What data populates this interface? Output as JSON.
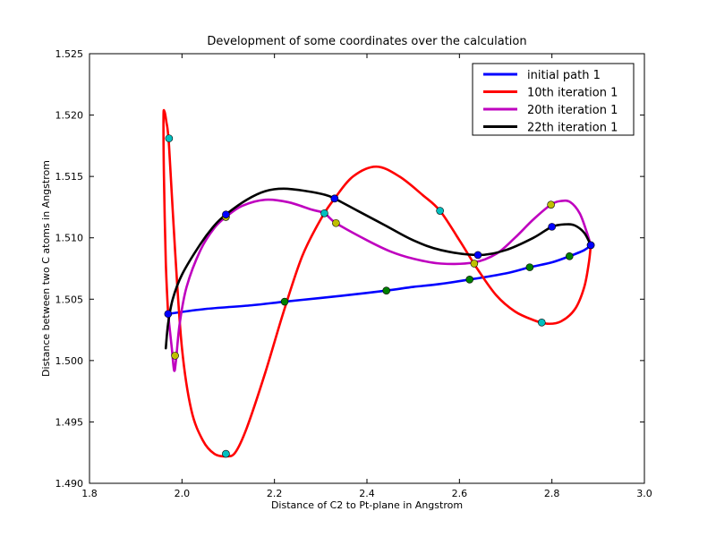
{
  "chart_data": {
    "type": "line",
    "title": "Development of some coordinates over the calculation",
    "xlabel": "Distance of C2 to Pt-plane in Angstrom",
    "ylabel": "Distance between two C atoms in Angstrom",
    "xlim": [
      1.8,
      3.0
    ],
    "ylim": [
      1.49,
      1.525
    ],
    "xticks": [
      1.8,
      2.0,
      2.2,
      2.4,
      2.6,
      2.8,
      3.0
    ],
    "xtick_labels": [
      "1.8",
      "2.0",
      "2.2",
      "2.4",
      "2.6",
      "2.8",
      "3.0"
    ],
    "yticks": [
      1.49,
      1.495,
      1.5,
      1.505,
      1.51,
      1.515,
      1.52,
      1.525
    ],
    "ytick_labels": [
      "1.490",
      "1.495",
      "1.500",
      "1.505",
      "1.510",
      "1.515",
      "1.520",
      "1.525"
    ],
    "legend_position": "top-right",
    "series": [
      {
        "name": "initial path 1",
        "color": "#0000ff",
        "curve": [
          [
            1.97,
            1.5038
          ],
          [
            2.05,
            1.5042
          ],
          [
            2.15,
            1.5045
          ],
          [
            2.222,
            1.5048
          ],
          [
            2.3,
            1.5051
          ],
          [
            2.35,
            1.5053
          ],
          [
            2.442,
            1.5057
          ],
          [
            2.5,
            1.506
          ],
          [
            2.55,
            1.5062
          ],
          [
            2.622,
            1.5066
          ],
          [
            2.7,
            1.5071
          ],
          [
            2.752,
            1.5076
          ],
          [
            2.8,
            1.508
          ],
          [
            2.838,
            1.5085
          ],
          [
            2.87,
            1.509
          ],
          [
            2.884,
            1.5094
          ]
        ],
        "markers": [
          [
            1.97,
            1.5038
          ],
          [
            2.222,
            1.5048
          ],
          [
            2.442,
            1.5057
          ],
          [
            2.622,
            1.5066
          ],
          [
            2.752,
            1.5076
          ],
          [
            2.838,
            1.5085
          ],
          [
            2.884,
            1.5094
          ]
        ],
        "marker_colors": [
          "#0000ff",
          "#008000",
          "#008000",
          "#008000",
          "#008000",
          "#008000",
          "#0000ff"
        ]
      },
      {
        "name": "10th iteration 1",
        "color": "#ff0000",
        "curve": [
          [
            1.97,
            1.5038
          ],
          [
            1.965,
            1.508
          ],
          [
            1.961,
            1.515
          ],
          [
            1.96,
            1.5198
          ],
          [
            1.962,
            1.5203
          ],
          [
            1.966,
            1.5195
          ],
          [
            1.972,
            1.5175
          ],
          [
            1.985,
            1.509
          ],
          [
            2.0,
            1.501
          ],
          [
            2.02,
            1.496
          ],
          [
            2.045,
            1.4935
          ],
          [
            2.07,
            1.4924
          ],
          [
            2.095,
            1.4922
          ],
          [
            2.115,
            1.4925
          ],
          [
            2.14,
            1.4945
          ],
          [
            2.18,
            1.499
          ],
          [
            2.22,
            1.504
          ],
          [
            2.26,
            1.5085
          ],
          [
            2.3,
            1.5115
          ],
          [
            2.33,
            1.5132
          ],
          [
            2.37,
            1.515
          ],
          [
            2.42,
            1.5158
          ],
          [
            2.47,
            1.515
          ],
          [
            2.52,
            1.5135
          ],
          [
            2.558,
            1.5122
          ],
          [
            2.6,
            1.5098
          ],
          [
            2.64,
            1.5074
          ],
          [
            2.68,
            1.5053
          ],
          [
            2.72,
            1.504
          ],
          [
            2.76,
            1.5033
          ],
          [
            2.79,
            1.503
          ],
          [
            2.82,
            1.5032
          ],
          [
            2.85,
            1.5042
          ],
          [
            2.87,
            1.506
          ],
          [
            2.88,
            1.508
          ],
          [
            2.884,
            1.5094
          ]
        ],
        "markers": [
          [
            1.972,
            1.5181
          ],
          [
            2.095,
            1.4924
          ],
          [
            2.33,
            1.5132
          ],
          [
            2.558,
            1.5122
          ],
          [
            2.778,
            1.5031
          ],
          [
            2.884,
            1.5094
          ]
        ],
        "marker_colors": [
          "#00bfbf",
          "#00bfbf",
          "#0000ff",
          "#00bfbf",
          "#00bfbf",
          "#0000ff"
        ]
      },
      {
        "name": "20th iteration 1",
        "color": "#bf00bf",
        "curve": [
          [
            1.97,
            1.5038
          ],
          [
            1.978,
            1.501
          ],
          [
            1.983,
            1.4992
          ],
          [
            1.987,
            1.5
          ],
          [
            1.995,
            1.503
          ],
          [
            2.01,
            1.506
          ],
          [
            2.04,
            1.509
          ],
          [
            2.07,
            1.5108
          ],
          [
            2.095,
            1.5117
          ],
          [
            2.13,
            1.5126
          ],
          [
            2.18,
            1.5131
          ],
          [
            2.23,
            1.5129
          ],
          [
            2.28,
            1.5123
          ],
          [
            2.308,
            1.512
          ],
          [
            2.333,
            1.5112
          ],
          [
            2.4,
            1.5098
          ],
          [
            2.45,
            1.5089
          ],
          [
            2.5,
            1.5083
          ],
          [
            2.56,
            1.5079
          ],
          [
            2.632,
            1.508
          ],
          [
            2.68,
            1.5087
          ],
          [
            2.72,
            1.51
          ],
          [
            2.76,
            1.5115
          ],
          [
            2.798,
            1.5127
          ],
          [
            2.82,
            1.513
          ],
          [
            2.84,
            1.5129
          ],
          [
            2.86,
            1.512
          ],
          [
            2.875,
            1.5105
          ],
          [
            2.884,
            1.5094
          ]
        ],
        "markers": [
          [
            1.985,
            1.5004
          ],
          [
            2.095,
            1.5117
          ],
          [
            2.308,
            1.512
          ],
          [
            2.333,
            1.5112
          ],
          [
            2.632,
            1.5079
          ],
          [
            2.798,
            1.5127
          ]
        ],
        "marker_colors": [
          "#bfbf00",
          "#bfbf00",
          "#00bfbf",
          "#bfbf00",
          "#bfbf00",
          "#bfbf00"
        ]
      },
      {
        "name": "22th iteration 1",
        "color": "#000000",
        "curve": [
          [
            1.965,
            1.501
          ],
          [
            1.97,
            1.503
          ],
          [
            1.98,
            1.505
          ],
          [
            2.0,
            1.507
          ],
          [
            2.04,
            1.5095
          ],
          [
            2.07,
            1.511
          ],
          [
            2.095,
            1.5119
          ],
          [
            2.14,
            1.5131
          ],
          [
            2.18,
            1.5138
          ],
          [
            2.22,
            1.514
          ],
          [
            2.27,
            1.5138
          ],
          [
            2.31,
            1.5135
          ],
          [
            2.33,
            1.5132
          ],
          [
            2.38,
            1.5122
          ],
          [
            2.44,
            1.511
          ],
          [
            2.5,
            1.5098
          ],
          [
            2.56,
            1.509
          ],
          [
            2.64,
            1.5086
          ],
          [
            2.7,
            1.509
          ],
          [
            2.76,
            1.51
          ],
          [
            2.8,
            1.5109
          ],
          [
            2.83,
            1.5111
          ],
          [
            2.85,
            1.511
          ],
          [
            2.87,
            1.5104
          ],
          [
            2.884,
            1.5094
          ]
        ],
        "markers": [
          [
            2.095,
            1.5119
          ],
          [
            2.33,
            1.5132
          ],
          [
            2.64,
            1.5086
          ],
          [
            2.8,
            1.5109
          ]
        ],
        "marker_colors": [
          "#0000ff",
          "#0000ff",
          "#0000ff",
          "#0000ff"
        ]
      }
    ]
  }
}
